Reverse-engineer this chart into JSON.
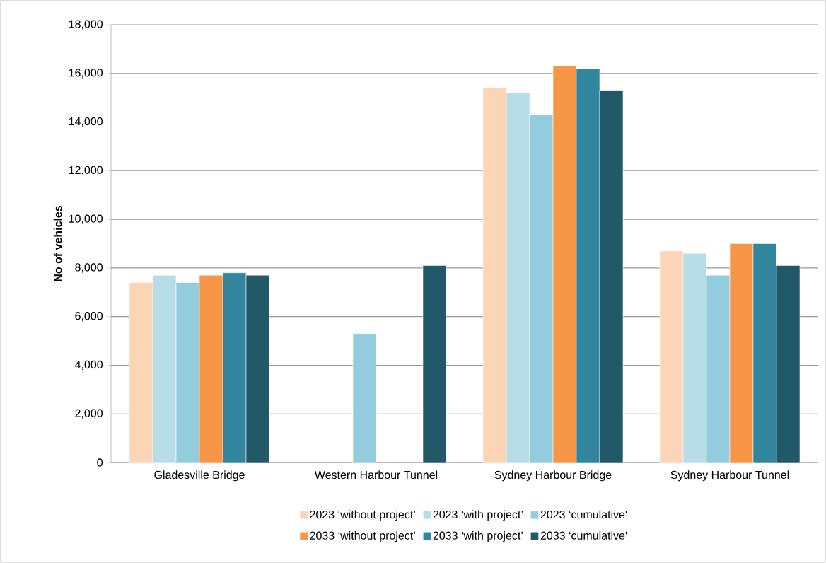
{
  "chart_data": {
    "type": "bar",
    "ylabel": "No of vehicles",
    "categories": [
      "Gladesville Bridge",
      "Western Harbour Tunnel",
      "Sydney Harbour Bridge",
      "Sydney Harbour Tunnel"
    ],
    "series": [
      {
        "name": "2023 ‘without project’",
        "color": "#fbd5b5",
        "values": [
          7400,
          null,
          15400,
          8700
        ]
      },
      {
        "name": "2023 ‘with project’",
        "color": "#b7dee8",
        "values": [
          7700,
          null,
          15200,
          8600
        ]
      },
      {
        "name": "2023 ‘cumulative'",
        "color": "#93cddd",
        "values": [
          7400,
          5300,
          14300,
          7700
        ]
      },
      {
        "name": "2033 ‘without project’",
        "color": "#f79646",
        "values": [
          7700,
          null,
          16300,
          9000
        ]
      },
      {
        "name": "2033 ‘with project’",
        "color": "#31859c",
        "values": [
          7800,
          null,
          16200,
          9000
        ]
      },
      {
        "name": "2033 ‘cumulative'",
        "color": "#215968",
        "values": [
          7700,
          8100,
          15300,
          8100
        ]
      }
    ],
    "ylim": [
      0,
      18000
    ],
    "yticks": [
      0,
      {
        "value": 2000,
        "label": "2,000"
      },
      {
        "value": 4000,
        "label": "4,000"
      },
      {
        "value": 6000,
        "label": "6,000"
      },
      {
        "value": 8000,
        "label": "8,000"
      },
      {
        "value": 10000,
        "label": "10,000"
      },
      {
        "value": 12000,
        "label": "12,000"
      },
      {
        "value": 14000,
        "label": "14,000"
      },
      {
        "value": 16000,
        "label": "16,000"
      },
      {
        "value": 18000,
        "label": "18,000"
      }
    ],
    "grid": "y",
    "legend": "bottom"
  }
}
